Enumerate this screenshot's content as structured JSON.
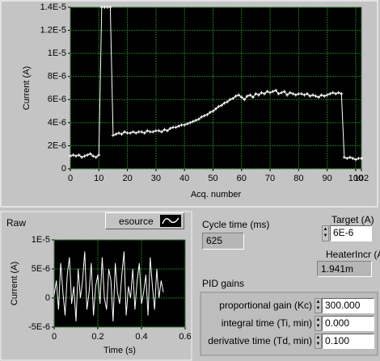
{
  "chart_data": [
    {
      "type": "line",
      "xlabel": "Acq. number",
      "ylabel": "Current (A)",
      "color": "#ffffff",
      "marker": "cross",
      "plot_bg": "#000000",
      "grid": true,
      "grid_color": "#1e7a1e",
      "x": [
        0,
        1,
        2,
        3,
        4,
        5,
        6,
        7,
        8,
        9,
        10,
        11,
        12,
        13,
        14,
        15,
        16,
        17,
        18,
        19,
        20,
        21,
        22,
        23,
        24,
        25,
        26,
        27,
        28,
        29,
        30,
        31,
        32,
        33,
        34,
        35,
        36,
        37,
        38,
        39,
        40,
        41,
        42,
        43,
        44,
        45,
        46,
        47,
        48,
        49,
        50,
        51,
        52,
        53,
        54,
        55,
        56,
        57,
        58,
        59,
        60,
        61,
        62,
        63,
        64,
        65,
        66,
        67,
        68,
        69,
        70,
        71,
        72,
        73,
        74,
        75,
        76,
        77,
        78,
        79,
        80,
        81,
        82,
        83,
        84,
        85,
        86,
        87,
        88,
        89,
        90,
        91,
        92,
        93,
        94,
        95,
        96,
        97,
        98,
        99,
        100,
        101,
        102
      ],
      "values": [
        1.1e-06,
        1.2e-06,
        1.1e-06,
        1.2e-06,
        1e-06,
        1.1e-06,
        1.2e-06,
        1.3e-06,
        1.1e-06,
        1e-06,
        1.2e-06,
        1.4e-05,
        1.4e-05,
        1.4e-05,
        1.4e-05,
        2.9e-06,
        3e-06,
        3.1e-06,
        3e-06,
        3.2e-06,
        3.1e-06,
        3.1e-06,
        3.2e-06,
        3.1e-06,
        3.2e-06,
        3.2e-06,
        3.1e-06,
        3.3e-06,
        3.2e-06,
        3.2e-06,
        3.3e-06,
        3.3e-06,
        3.2e-06,
        3.4e-06,
        3.3e-06,
        3.5e-06,
        3.6e-06,
        3.6e-06,
        3.7e-06,
        3.8e-06,
        3.8e-06,
        3.9e-06,
        4e-06,
        4.1e-06,
        4.2e-06,
        4.3e-06,
        4.5e-06,
        4.6e-06,
        4.7e-06,
        4.9e-06,
        5e-06,
        5.2e-06,
        5.4e-06,
        5.5e-06,
        5.7e-06,
        5.8e-06,
        6e-06,
        6.1e-06,
        6.3e-06,
        6.4e-06,
        6.2e-06,
        6e-06,
        6.3e-06,
        6.4e-06,
        6.2e-06,
        6.5e-06,
        6.4e-06,
        6.6e-06,
        6.5e-06,
        6.7e-06,
        6.6e-06,
        6.7e-06,
        6.8e-06,
        6.5e-06,
        6.6e-06,
        6.7e-06,
        6.4e-06,
        6.6e-06,
        6.5e-06,
        6.4e-06,
        6.5e-06,
        6.5e-06,
        6.4e-06,
        6.5e-06,
        6.3e-06,
        6.4e-06,
        6.3e-06,
        6.2e-06,
        6.4e-06,
        6.3e-06,
        6.4e-06,
        6.5e-06,
        6.6e-06,
        6.5e-06,
        6.6e-06,
        6.5e-06,
        1e-06,
        9e-07,
        1e-06,
        9e-07,
        8e-07,
        9e-07,
        9e-07
      ],
      "xlim": [
        0,
        102
      ],
      "xticks": [
        0,
        10,
        20,
        30,
        40,
        50,
        60,
        70,
        80,
        90,
        100,
        102
      ],
      "ylim": [
        0,
        1.4e-05
      ],
      "yticks": [
        0,
        {
          "value": 2e-06,
          "label": "2E-6"
        },
        {
          "value": 4e-06,
          "label": "4E-6"
        },
        {
          "value": 6e-06,
          "label": "6E-6"
        },
        {
          "value": 8e-06,
          "label": "8E-6"
        },
        {
          "value": 1e-05,
          "label": "1E-5"
        },
        {
          "value": 1.2e-05,
          "label": "1.2E-5"
        },
        {
          "value": 1.4e-05,
          "label": "1.4E-5"
        }
      ]
    },
    {
      "type": "line",
      "title": "Raw",
      "xlabel": "Time (s)",
      "ylabel": "Current (A)",
      "color": "#ffffff",
      "plot_bg": "#000000",
      "grid": true,
      "grid_color": "#1e7a1e",
      "x": [
        0,
        0.01,
        0.02,
        0.03,
        0.04,
        0.05,
        0.06,
        0.07,
        0.08,
        0.09,
        0.1,
        0.11,
        0.12,
        0.13,
        0.14,
        0.15,
        0.16,
        0.17,
        0.18,
        0.19,
        0.2,
        0.21,
        0.22,
        0.23,
        0.24,
        0.25,
        0.26,
        0.27,
        0.28,
        0.29,
        0.3,
        0.31,
        0.32,
        0.33,
        0.34,
        0.35,
        0.36,
        0.37,
        0.38,
        0.39,
        0.4,
        0.41,
        0.42,
        0.43,
        0.44,
        0.45,
        0.46,
        0.47,
        0.48,
        0.49,
        0.5
      ],
      "values": [
        5e-07,
        3e-06,
        -2e-06,
        6e-06,
        1e-06,
        -3e-06,
        4e-06,
        7e-06,
        -1e-06,
        2e-06,
        -4e-06,
        5e-06,
        0,
        3e-06,
        8e-06,
        -2e-06,
        1e-06,
        6e-06,
        -3e-06,
        2e-06,
        4e-06,
        -1e-06,
        7e-06,
        0,
        -2e-06,
        5e-06,
        3e-06,
        -4e-06,
        6e-06,
        1e-06,
        -1e-06,
        4e-06,
        8e-06,
        -3e-06,
        2e-06,
        0,
        5e-06,
        -2e-06,
        3e-06,
        6e-06,
        -1e-06,
        1e-06,
        4e-06,
        -3e-06,
        7e-06,
        2e-06,
        -2e-06,
        5e-06,
        0,
        3e-06,
        1e-06
      ],
      "xlim": [
        0,
        0.6
      ],
      "xticks": [
        0,
        0.2,
        0.4,
        0.6
      ],
      "ylim": [
        -5e-06,
        1e-05
      ],
      "yticks": [
        {
          "value": -5e-06,
          "label": "-5E-6"
        },
        0,
        {
          "value": 5e-06,
          "label": "5E-6"
        },
        {
          "value": 1e-05,
          "label": "1E-5"
        }
      ]
    }
  ],
  "source_button": "esource",
  "cycle_time": {
    "label": "Cycle time (ms)",
    "value": "625"
  },
  "target": {
    "label": "Target (A)",
    "value": "6E-6"
  },
  "heater_incr": {
    "label": "HeaterIncr (A)",
    "value": "1.941m"
  },
  "pid": {
    "label": "PID gains",
    "rows": [
      {
        "label": "proportional gain (Kc)",
        "value": "300.000"
      },
      {
        "label": "integral time (Ti, min)",
        "value": "0.000"
      },
      {
        "label": "derivative time (Td, min)",
        "value": "0.100"
      }
    ]
  }
}
